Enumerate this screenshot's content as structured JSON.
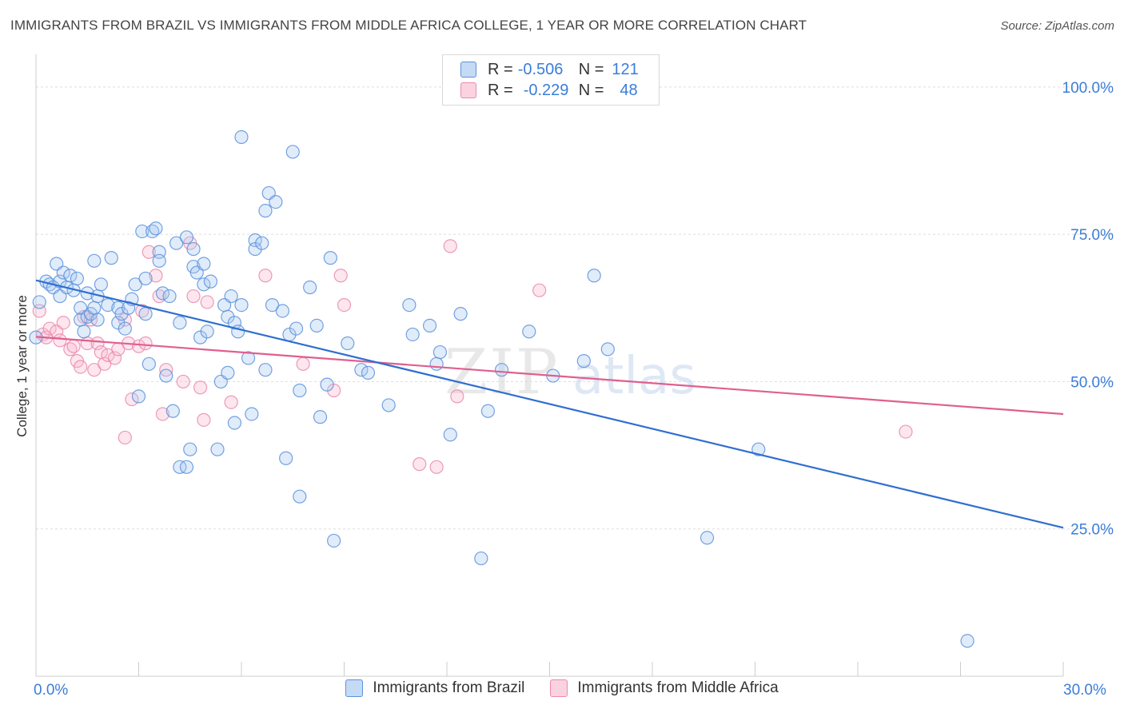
{
  "title": "IMMIGRANTS FROM BRAZIL VS IMMIGRANTS FROM MIDDLE AFRICA COLLEGE, 1 YEAR OR MORE CORRELATION CHART",
  "source": "Source: ZipAtlas.com",
  "watermark": "ZIPatlas",
  "legend": {
    "r_label": "R =",
    "n_label": "N =",
    "rows": [
      {
        "r": "-0.506",
        "n": "121",
        "color": "#a9c8f0",
        "border": "#5b92dc"
      },
      {
        "r": "-0.229",
        "n": "48",
        "color": "#f8c0d2",
        "border": "#e98aab"
      }
    ]
  },
  "bottom_legend": [
    "Immigrants from Brazil",
    "Immigrants from Middle Africa"
  ],
  "chart_data": {
    "type": "scatter",
    "xlabel": "",
    "ylabel": "College, 1 year or more",
    "xlim": [
      0,
      30
    ],
    "ylim": [
      0,
      105
    ],
    "x_tick_labels": [
      "0.0%",
      "30.0%"
    ],
    "y_ticks": [
      25,
      50,
      75,
      100
    ],
    "y_tick_labels": [
      "25.0%",
      "50.0%",
      "75.0%",
      "100.0%"
    ],
    "grid": true,
    "colors": {
      "brazil": "#5b92dc",
      "brazil_line": "#2f6fd0",
      "africa": "#e98aab",
      "africa_line": "#e05f8f",
      "tick": "#3b7dd8"
    },
    "series": [
      {
        "name": "Immigrants from Brazil",
        "trend": {
          "x": [
            0,
            30
          ],
          "y": [
            67.2,
            25.2
          ]
        },
        "points": [
          [
            0.0,
            57.5
          ],
          [
            0.1,
            63.5
          ],
          [
            0.3,
            67.0
          ],
          [
            0.4,
            66.5
          ],
          [
            0.5,
            66.0
          ],
          [
            0.6,
            70.0
          ],
          [
            0.7,
            67.0
          ],
          [
            0.7,
            64.5
          ],
          [
            0.8,
            68.5
          ],
          [
            0.9,
            66.0
          ],
          [
            1.0,
            68.0
          ],
          [
            1.1,
            65.5
          ],
          [
            1.2,
            67.5
          ],
          [
            1.3,
            62.5
          ],
          [
            1.3,
            60.5
          ],
          [
            1.4,
            58.5
          ],
          [
            1.5,
            61.0
          ],
          [
            1.6,
            61.5
          ],
          [
            1.5,
            65.0
          ],
          [
            1.7,
            62.5
          ],
          [
            1.8,
            60.5
          ],
          [
            1.8,
            64.5
          ],
          [
            1.7,
            70.5
          ],
          [
            1.9,
            66.5
          ],
          [
            2.1,
            63.0
          ],
          [
            2.2,
            71.0
          ],
          [
            2.4,
            62.5
          ],
          [
            2.4,
            60.0
          ],
          [
            2.5,
            61.5
          ],
          [
            2.6,
            59.0
          ],
          [
            2.7,
            62.5
          ],
          [
            2.8,
            64.0
          ],
          [
            2.9,
            66.5
          ],
          [
            3.0,
            47.5
          ],
          [
            3.1,
            75.5
          ],
          [
            3.2,
            61.5
          ],
          [
            3.2,
            67.5
          ],
          [
            3.3,
            53.0
          ],
          [
            3.4,
            75.5
          ],
          [
            3.5,
            76.0
          ],
          [
            3.6,
            72.0
          ],
          [
            3.6,
            70.5
          ],
          [
            3.7,
            65.0
          ],
          [
            3.8,
            51.0
          ],
          [
            3.9,
            64.5
          ],
          [
            4.0,
            45.0
          ],
          [
            4.1,
            73.5
          ],
          [
            4.2,
            60.0
          ],
          [
            4.2,
            35.5
          ],
          [
            4.4,
            35.5
          ],
          [
            4.4,
            74.5
          ],
          [
            4.5,
            38.5
          ],
          [
            4.6,
            72.5
          ],
          [
            4.6,
            69.5
          ],
          [
            4.7,
            68.5
          ],
          [
            4.8,
            57.5
          ],
          [
            4.9,
            70.0
          ],
          [
            4.9,
            66.5
          ],
          [
            5.0,
            58.5
          ],
          [
            5.1,
            67.0
          ],
          [
            5.3,
            38.5
          ],
          [
            5.4,
            50.0
          ],
          [
            5.5,
            63.0
          ],
          [
            5.6,
            51.5
          ],
          [
            5.6,
            61.0
          ],
          [
            5.7,
            64.5
          ],
          [
            5.8,
            43.0
          ],
          [
            5.8,
            60.0
          ],
          [
            5.9,
            58.5
          ],
          [
            6.0,
            63.0
          ],
          [
            6.0,
            91.5
          ],
          [
            6.2,
            54.0
          ],
          [
            6.3,
            44.5
          ],
          [
            6.4,
            74.0
          ],
          [
            6.4,
            72.5
          ],
          [
            6.6,
            73.5
          ],
          [
            6.7,
            79.0
          ],
          [
            6.7,
            52.0
          ],
          [
            6.8,
            82.0
          ],
          [
            6.9,
            63.0
          ],
          [
            7.0,
            80.5
          ],
          [
            7.2,
            62.0
          ],
          [
            7.3,
            37.0
          ],
          [
            7.4,
            58.0
          ],
          [
            7.5,
            89.0
          ],
          [
            7.6,
            59.0
          ],
          [
            7.7,
            48.5
          ],
          [
            7.7,
            30.5
          ],
          [
            8.0,
            66.0
          ],
          [
            8.2,
            59.5
          ],
          [
            8.3,
            44.0
          ],
          [
            8.5,
            49.5
          ],
          [
            8.6,
            71.0
          ],
          [
            8.7,
            23.0
          ],
          [
            9.1,
            56.5
          ],
          [
            9.5,
            52.0
          ],
          [
            9.7,
            51.5
          ],
          [
            10.3,
            46.0
          ],
          [
            10.9,
            63.0
          ],
          [
            11.0,
            58.0
          ],
          [
            11.5,
            59.5
          ],
          [
            11.7,
            53.0
          ],
          [
            11.8,
            55.0
          ],
          [
            12.1,
            41.0
          ],
          [
            12.4,
            61.5
          ],
          [
            13.0,
            20.0
          ],
          [
            13.2,
            45.0
          ],
          [
            13.6,
            52.0
          ],
          [
            14.4,
            58.5
          ],
          [
            15.1,
            51.0
          ],
          [
            16.0,
            53.5
          ],
          [
            16.3,
            68.0
          ],
          [
            16.7,
            55.5
          ],
          [
            19.6,
            23.5
          ],
          [
            21.1,
            38.5
          ],
          [
            27.2,
            6.0
          ]
        ]
      },
      {
        "name": "Immigrants from Middle Africa",
        "trend": {
          "x": [
            0,
            30
          ],
          "y": [
            57.6,
            44.5
          ]
        },
        "points": [
          [
            0.1,
            62.0
          ],
          [
            0.2,
            58.0
          ],
          [
            0.3,
            57.5
          ],
          [
            0.4,
            59.0
          ],
          [
            0.6,
            58.5
          ],
          [
            0.7,
            57.0
          ],
          [
            0.8,
            60.0
          ],
          [
            1.0,
            55.5
          ],
          [
            1.1,
            56.0
          ],
          [
            1.2,
            53.5
          ],
          [
            1.3,
            52.5
          ],
          [
            1.4,
            61.0
          ],
          [
            1.5,
            56.5
          ],
          [
            1.6,
            60.5
          ],
          [
            1.7,
            52.0
          ],
          [
            1.8,
            56.5
          ],
          [
            1.9,
            55.0
          ],
          [
            2.0,
            53.0
          ],
          [
            2.1,
            54.5
          ],
          [
            2.3,
            54.0
          ],
          [
            2.4,
            55.5
          ],
          [
            2.6,
            60.5
          ],
          [
            2.6,
            40.5
          ],
          [
            2.7,
            56.5
          ],
          [
            2.8,
            47.0
          ],
          [
            3.0,
            56.0
          ],
          [
            3.1,
            62.0
          ],
          [
            3.2,
            56.5
          ],
          [
            3.3,
            72.0
          ],
          [
            3.5,
            68.0
          ],
          [
            3.6,
            64.5
          ],
          [
            3.8,
            52.0
          ],
          [
            3.7,
            44.5
          ],
          [
            4.3,
            50.0
          ],
          [
            4.5,
            73.5
          ],
          [
            4.6,
            64.5
          ],
          [
            4.8,
            49.0
          ],
          [
            4.9,
            43.5
          ],
          [
            5.0,
            63.5
          ],
          [
            5.7,
            46.5
          ],
          [
            6.7,
            68.0
          ],
          [
            7.8,
            53.0
          ],
          [
            8.7,
            48.5
          ],
          [
            8.9,
            68.0
          ],
          [
            9.0,
            63.0
          ],
          [
            11.2,
            36.0
          ],
          [
            11.7,
            35.5
          ],
          [
            12.1,
            73.0
          ],
          [
            12.3,
            47.5
          ],
          [
            14.7,
            65.5
          ],
          [
            25.4,
            41.5
          ]
        ]
      }
    ]
  }
}
